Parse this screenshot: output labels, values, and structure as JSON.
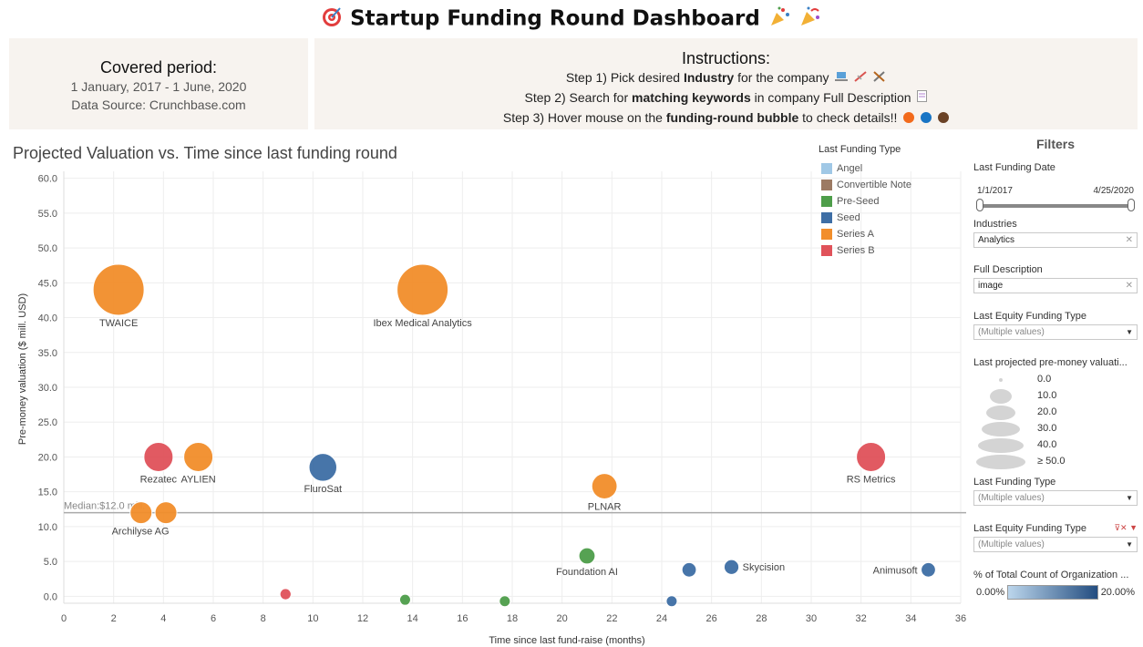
{
  "header": {
    "title": "Startup Funding Round Dashboard"
  },
  "period": {
    "heading": "Covered period:",
    "dates": "1 January, 2017 - 1 June, 2020",
    "source": "Data Source: Crunchbase.com"
  },
  "instructions": {
    "heading": "Instructions:",
    "step1_pre": "Step 1) Pick desired ",
    "step1_bold": "Industry",
    "step1_post": " for the company",
    "step2_pre": "Step 2) Search for ",
    "step2_bold": "matching keywords",
    "step2_post": " in company Full Description",
    "step3_pre": "Step 3) Hover mouse on the ",
    "step3_bold": "funding-round bubble",
    "step3_post": " to check details!!"
  },
  "chart_title": "Projected Valuation vs. Time since last funding round",
  "legend": {
    "title": "Last Funding Type",
    "items": [
      {
        "label": "Angel",
        "color": "#a0c8e6"
      },
      {
        "label": "Convertible Note",
        "color": "#9c7a63"
      },
      {
        "label": "Pre-Seed",
        "color": "#4e9e4a"
      },
      {
        "label": "Seed",
        "color": "#3e6ea5"
      },
      {
        "label": "Series A",
        "color": "#f28e2b"
      },
      {
        "label": "Series B",
        "color": "#e0525a"
      }
    ]
  },
  "chart_data": {
    "type": "scatter",
    "xlabel": "Time since last fund-raise (months)",
    "ylabel": "Pre-money valuation ($ mill. USD)",
    "xlim": [
      0,
      36
    ],
    "ylim": [
      -1,
      61
    ],
    "xticks": [
      0,
      2,
      4,
      6,
      8,
      10,
      12,
      14,
      16,
      18,
      20,
      22,
      24,
      26,
      28,
      30,
      32,
      34,
      36
    ],
    "yticks": [
      "0.0",
      "5.0",
      "10.0",
      "15.0",
      "20.0",
      "25.0",
      "30.0",
      "35.0",
      "40.0",
      "45.0",
      "50.0",
      "55.0",
      "60.0"
    ],
    "median": {
      "value": 12.0,
      "label": "Median:$12.0 mill."
    },
    "points": [
      {
        "name": "TWAICE",
        "x": 2.2,
        "y": 44,
        "type": "Series A",
        "color": "#f28e2b"
      },
      {
        "name": "Ibex Medical Analytics",
        "x": 14.4,
        "y": 44,
        "type": "Series A",
        "color": "#f28e2b"
      },
      {
        "name": "Rezatec",
        "x": 3.8,
        "y": 20,
        "type": "Series B",
        "color": "#e0525a"
      },
      {
        "name": "AYLIEN",
        "x": 5.4,
        "y": 20,
        "type": "Series A",
        "color": "#f28e2b"
      },
      {
        "name": "FluroSat",
        "x": 10.4,
        "y": 18.5,
        "type": "Seed",
        "color": "#3e6ea5"
      },
      {
        "name": "RS Metrics",
        "x": 32.4,
        "y": 20,
        "type": "Series B",
        "color": "#e0525a"
      },
      {
        "name": "PLNAR",
        "x": 21.7,
        "y": 15.8,
        "type": "Series A",
        "color": "#f28e2b"
      },
      {
        "name": "",
        "x": 3.1,
        "y": 12,
        "type": "Series A",
        "color": "#f28e2b"
      },
      {
        "name": "Archilyse AG",
        "x": 4.1,
        "y": 12,
        "type": "Series A",
        "color": "#f28e2b"
      },
      {
        "name": "Foundation AI",
        "x": 21.0,
        "y": 5.8,
        "type": "Pre-Seed",
        "color": "#4e9e4a"
      },
      {
        "name": "",
        "x": 25.1,
        "y": 3.8,
        "type": "Seed",
        "color": "#3e6ea5"
      },
      {
        "name": "Skycision",
        "x": 26.8,
        "y": 4.2,
        "type": "Seed",
        "color": "#3e6ea5"
      },
      {
        "name": "Animusoft",
        "x": 34.7,
        "y": 3.8,
        "type": "Seed",
        "color": "#3e6ea5"
      },
      {
        "name": "",
        "x": 8.9,
        "y": 0.3,
        "type": "Series B",
        "color": "#e0525a"
      },
      {
        "name": "",
        "x": 13.7,
        "y": -0.5,
        "type": "Pre-Seed",
        "color": "#4e9e4a"
      },
      {
        "name": "",
        "x": 17.7,
        "y": -0.7,
        "type": "Pre-Seed",
        "color": "#4e9e4a"
      },
      {
        "name": "",
        "x": 24.4,
        "y": -0.7,
        "type": "Seed",
        "color": "#3e6ea5"
      }
    ]
  },
  "filters": {
    "heading": "Filters",
    "date": {
      "label": "Last Funding Date",
      "start": "1/1/2017",
      "end": "4/25/2020"
    },
    "industries": {
      "label": "Industries",
      "value": "Analytics"
    },
    "description": {
      "label": "Full Description",
      "value": "image"
    },
    "equity1": {
      "label": "Last Equity Funding Type",
      "value": "(Multiple values)"
    },
    "size": {
      "label": "Last projected pre-money valuati...",
      "values": [
        "0.0",
        "10.0",
        "20.0",
        "30.0",
        "40.0",
        "≥ 50.0"
      ]
    },
    "funding_type": {
      "label": "Last Funding Type",
      "value": "(Multiple values)"
    },
    "equity2": {
      "label": "Last Equity Funding Type",
      "value": "(Multiple values)"
    },
    "pct": {
      "label": "% of Total Count of Organization ...",
      "min": "0.00%",
      "max": "20.00%"
    }
  }
}
